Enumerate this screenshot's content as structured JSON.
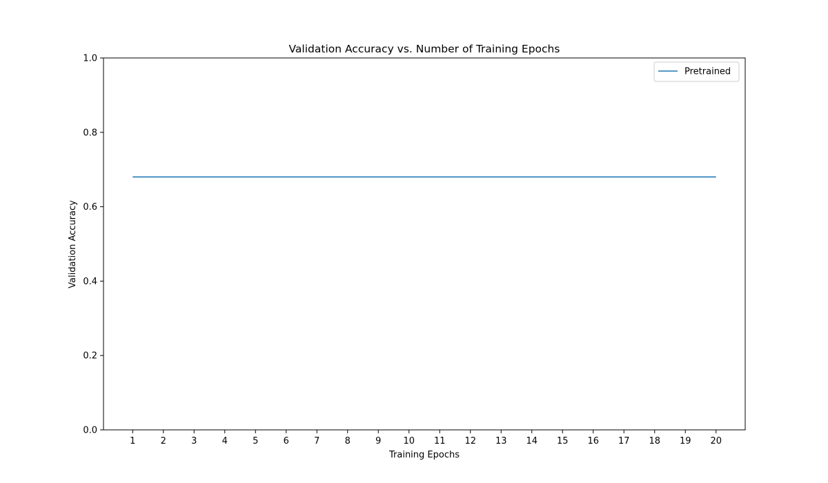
{
  "chart_data": {
    "type": "line",
    "title": "Validation Accuracy vs. Number of Training Epochs",
    "xlabel": "Training Epochs",
    "ylabel": "Validation Accuracy",
    "x": [
      1,
      2,
      3,
      4,
      5,
      6,
      7,
      8,
      9,
      10,
      11,
      12,
      13,
      14,
      15,
      16,
      17,
      18,
      19,
      20
    ],
    "xlim": [
      0.05,
      20.95
    ],
    "ylim": [
      0.0,
      1.0
    ],
    "xticks": [
      1,
      2,
      3,
      4,
      5,
      6,
      7,
      8,
      9,
      10,
      11,
      12,
      13,
      14,
      15,
      16,
      17,
      18,
      19,
      20
    ],
    "yticks": [
      "0.0",
      "0.2",
      "0.4",
      "0.6",
      "0.8",
      "1.0"
    ],
    "grid": false,
    "legend": "top-right",
    "series": [
      {
        "name": "Pretrained",
        "color": "#1f77b4",
        "values": [
          0.68,
          0.68,
          0.68,
          0.68,
          0.68,
          0.68,
          0.68,
          0.68,
          0.68,
          0.68,
          0.68,
          0.68,
          0.68,
          0.68,
          0.68,
          0.68,
          0.68,
          0.68,
          0.68,
          0.68
        ]
      }
    ]
  }
}
